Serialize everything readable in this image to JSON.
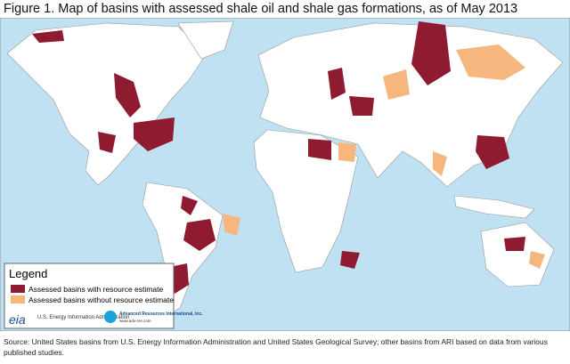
{
  "title": "Figure 1. Map of basins with assessed shale oil and shale gas formations, as of May 2013",
  "legend": {
    "title": "Legend",
    "items": [
      {
        "label": "Assessed basins with resource estimate",
        "color": "#8e1b30"
      },
      {
        "label": "Assessed basins without resource estimate",
        "color": "#f5b77e"
      }
    ]
  },
  "logos": {
    "eia": "eia",
    "eia_name": "U.S. Energy Information Administration",
    "ari_name": "Advanced Resources International, Inc.",
    "ari_url": "www.adv-res.com"
  },
  "source": "Source: United States basins from U.S. Energy Information Administration and United States Geological Survey; other basins from ARI based on data from various published studies."
}
